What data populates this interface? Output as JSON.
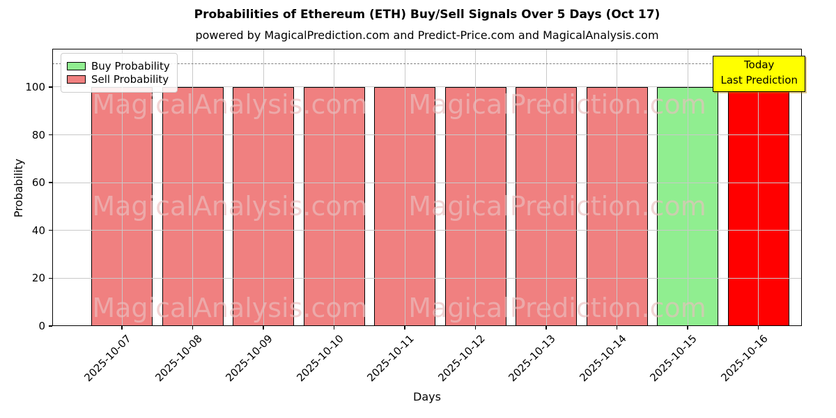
{
  "chart_data": {
    "type": "bar",
    "title": "Probabilities of Ethereum (ETH) Buy/Sell Signals Over 5 Days (Oct 17)",
    "subtitle": "powered by MagicalPrediction.com and Predict-Price.com and MagicalAnalysis.com",
    "xlabel": "Days",
    "ylabel": "Probability",
    "categories": [
      "2025-10-07",
      "2025-10-08",
      "2025-10-09",
      "2025-10-10",
      "2025-10-11",
      "2025-10-12",
      "2025-10-13",
      "2025-10-14",
      "2025-10-15",
      "2025-10-16"
    ],
    "series": [
      {
        "name": "Buy Probability",
        "color": "#90EE90",
        "values": [
          0,
          0,
          0,
          0,
          0,
          0,
          0,
          0,
          100,
          0
        ]
      },
      {
        "name": "Sell Probability",
        "color": "#F08080",
        "values": [
          100,
          100,
          100,
          100,
          100,
          100,
          100,
          100,
          0,
          100
        ]
      }
    ],
    "bar_colors": [
      "#F08080",
      "#F08080",
      "#F08080",
      "#F08080",
      "#F08080",
      "#F08080",
      "#F08080",
      "#F08080",
      "#90EE90",
      "#FF0000"
    ],
    "bar_edge_color": "#000000",
    "yticks": [
      0,
      20,
      40,
      60,
      80,
      100
    ],
    "ylim": [
      0,
      116
    ],
    "grid": true,
    "grid_color": "#c9c9c9",
    "legend_position": "upper left",
    "dashed_line_y": 110,
    "dashed_line_color": "#7f7f7f",
    "annotation": {
      "lines": [
        "Today",
        "Last Prediction"
      ],
      "bg_color": "#FFFF00",
      "attached_to": "2025-10-16"
    },
    "watermarks": [
      "MagicalAnalysis.com",
      "MagicalPrediction.com"
    ]
  }
}
